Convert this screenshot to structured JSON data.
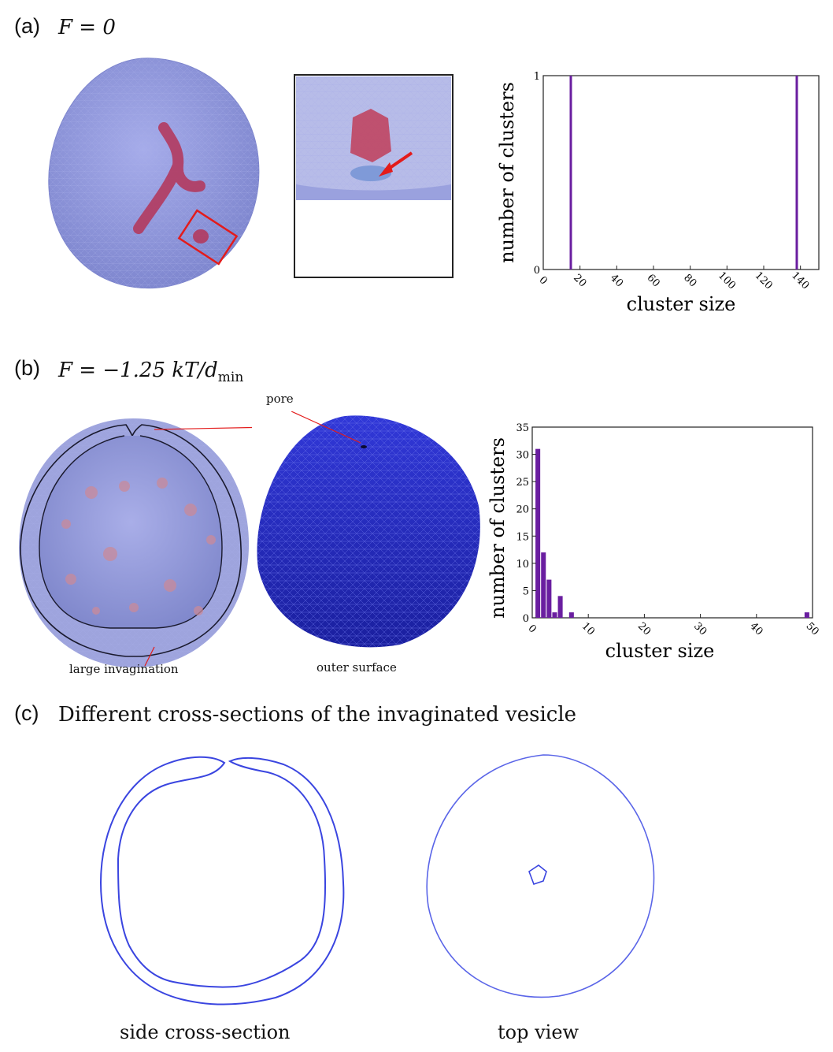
{
  "panel_a": {
    "label": "(a)",
    "equation": "F = 0"
  },
  "panel_b": {
    "label": "(b)",
    "equation_main": "F = −1.25 kT/d",
    "equation_sub": "min",
    "annotation_pore": "pore",
    "annotation_large_invagination": "large invagination",
    "annotation_outer_surface": "outer surface"
  },
  "panel_c": {
    "label": "(c)",
    "title": "Different cross-sections of the invaginated vesicle",
    "caption_side": "side cross-section",
    "caption_top": "top view"
  },
  "colors": {
    "vesicle": "#8c93d6",
    "vesicle_dark": "#2530c8",
    "cluster": "#b23a5e",
    "bar": "#6a1ea0",
    "highlight": "#e31b1b",
    "outline": "#3a45e0"
  },
  "chart_data": [
    {
      "type": "bar",
      "xlabel": "cluster size",
      "ylabel": "number of clusters",
      "xlim": [
        0,
        150
      ],
      "ylim": [
        0,
        1
      ],
      "xticks": [
        "0",
        "20",
        "40",
        "60",
        "80",
        "100",
        "120",
        "140"
      ],
      "yticks": [
        "0",
        "1"
      ],
      "x": [
        15,
        138
      ],
      "values": [
        1,
        1
      ]
    },
    {
      "type": "bar",
      "xlabel": "cluster size",
      "ylabel": "number of clusters",
      "xlim": [
        0,
        50
      ],
      "ylim": [
        0,
        35
      ],
      "xticks": [
        "0",
        "10",
        "20",
        "30",
        "40",
        "50"
      ],
      "yticks": [
        "0",
        "5",
        "10",
        "15",
        "20",
        "25",
        "30",
        "35"
      ],
      "x": [
        1,
        2,
        3,
        4,
        5,
        7,
        49
      ],
      "values": [
        31,
        12,
        7,
        1,
        4,
        1,
        1
      ]
    }
  ]
}
